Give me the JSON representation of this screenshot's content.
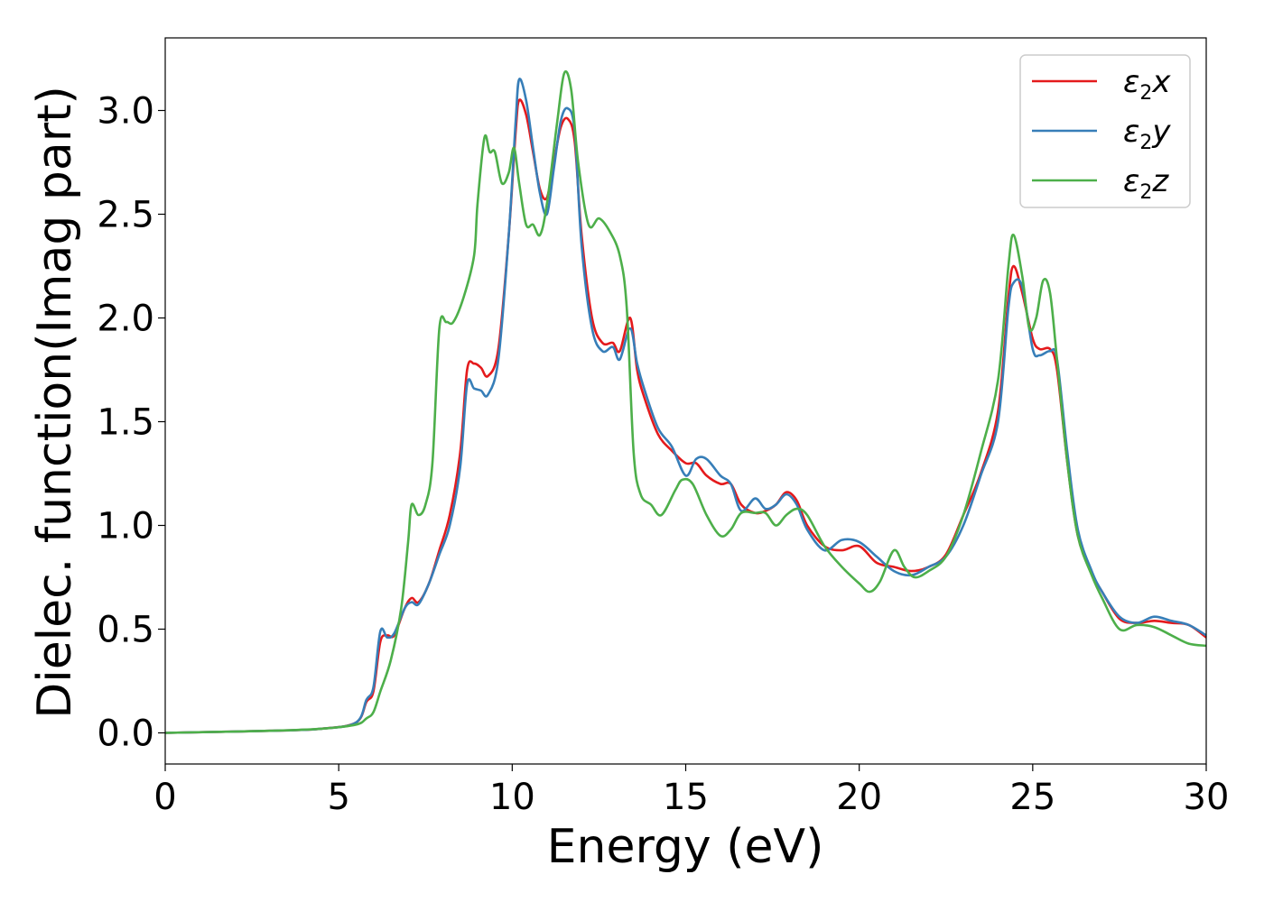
{
  "chart_data": {
    "type": "line",
    "xlabel": "Energy (eV)",
    "ylabel": "Dielec. function(Imag part)",
    "xlim": [
      0,
      30
    ],
    "ylim": [
      -0.15,
      3.35
    ],
    "xticks": [
      0,
      5,
      10,
      15,
      20,
      25,
      30
    ],
    "xtick_labels": [
      "0",
      "5",
      "10",
      "15",
      "20",
      "25",
      "30"
    ],
    "yticks": [
      0.0,
      0.5,
      1.0,
      1.5,
      2.0,
      2.5,
      3.0
    ],
    "ytick_labels": [
      "0.0",
      "0.5",
      "1.0",
      "1.5",
      "2.0",
      "2.5",
      "3.0"
    ],
    "grid": false,
    "legend_position": "top-right",
    "series": [
      {
        "name": "ε2x",
        "legend_main": "ε",
        "legend_sub": "2",
        "legend_var": "x",
        "color": "#e41a1c",
        "points": [
          [
            0,
            0.0
          ],
          [
            3,
            0.01
          ],
          [
            4.5,
            0.02
          ],
          [
            5.5,
            0.05
          ],
          [
            5.8,
            0.15
          ],
          [
            6.0,
            0.2
          ],
          [
            6.2,
            0.44
          ],
          [
            6.4,
            0.47
          ],
          [
            6.6,
            0.47
          ],
          [
            6.9,
            0.6
          ],
          [
            7.1,
            0.65
          ],
          [
            7.3,
            0.63
          ],
          [
            7.6,
            0.72
          ],
          [
            7.9,
            0.88
          ],
          [
            8.2,
            1.05
          ],
          [
            8.5,
            1.35
          ],
          [
            8.7,
            1.75
          ],
          [
            8.9,
            1.78
          ],
          [
            9.1,
            1.76
          ],
          [
            9.3,
            1.72
          ],
          [
            9.6,
            1.85
          ],
          [
            9.9,
            2.4
          ],
          [
            10.1,
            2.9
          ],
          [
            10.2,
            3.05
          ],
          [
            10.4,
            2.98
          ],
          [
            10.6,
            2.8
          ],
          [
            10.8,
            2.62
          ],
          [
            11.0,
            2.58
          ],
          [
            11.2,
            2.75
          ],
          [
            11.4,
            2.92
          ],
          [
            11.6,
            2.96
          ],
          [
            11.8,
            2.85
          ],
          [
            12.0,
            2.4
          ],
          [
            12.3,
            2.0
          ],
          [
            12.6,
            1.88
          ],
          [
            12.9,
            1.88
          ],
          [
            13.1,
            1.84
          ],
          [
            13.4,
            2.0
          ],
          [
            13.6,
            1.75
          ],
          [
            13.8,
            1.62
          ],
          [
            14.2,
            1.44
          ],
          [
            14.6,
            1.36
          ],
          [
            15.0,
            1.3
          ],
          [
            15.3,
            1.3
          ],
          [
            15.6,
            1.24
          ],
          [
            16.0,
            1.2
          ],
          [
            16.3,
            1.2
          ],
          [
            16.6,
            1.1
          ],
          [
            17.0,
            1.06
          ],
          [
            17.3,
            1.07
          ],
          [
            17.6,
            1.1
          ],
          [
            17.9,
            1.16
          ],
          [
            18.2,
            1.12
          ],
          [
            18.5,
            1.0
          ],
          [
            19.0,
            0.9
          ],
          [
            19.5,
            0.88
          ],
          [
            20.0,
            0.9
          ],
          [
            20.5,
            0.82
          ],
          [
            21.0,
            0.8
          ],
          [
            21.5,
            0.78
          ],
          [
            22.0,
            0.8
          ],
          [
            22.5,
            0.86
          ],
          [
            23.0,
            1.05
          ],
          [
            23.5,
            1.25
          ],
          [
            24.0,
            1.55
          ],
          [
            24.3,
            2.1
          ],
          [
            24.45,
            2.25
          ],
          [
            24.7,
            2.12
          ],
          [
            25.0,
            1.9
          ],
          [
            25.2,
            1.85
          ],
          [
            25.5,
            1.85
          ],
          [
            25.7,
            1.75
          ],
          [
            26.0,
            1.3
          ],
          [
            26.3,
            0.95
          ],
          [
            26.7,
            0.77
          ],
          [
            27.0,
            0.68
          ],
          [
            27.5,
            0.55
          ],
          [
            28.0,
            0.53
          ],
          [
            28.5,
            0.54
          ],
          [
            29.0,
            0.53
          ],
          [
            29.5,
            0.52
          ],
          [
            30.0,
            0.46
          ]
        ]
      },
      {
        "name": "ε2y",
        "legend_main": "ε",
        "legend_sub": "2",
        "legend_var": "y",
        "color": "#377eb8",
        "points": [
          [
            0,
            0.0
          ],
          [
            3,
            0.01
          ],
          [
            4.5,
            0.02
          ],
          [
            5.5,
            0.05
          ],
          [
            5.8,
            0.16
          ],
          [
            6.0,
            0.22
          ],
          [
            6.2,
            0.49
          ],
          [
            6.4,
            0.46
          ],
          [
            6.6,
            0.48
          ],
          [
            6.9,
            0.6
          ],
          [
            7.1,
            0.63
          ],
          [
            7.3,
            0.62
          ],
          [
            7.6,
            0.72
          ],
          [
            7.9,
            0.86
          ],
          [
            8.2,
            1.0
          ],
          [
            8.5,
            1.28
          ],
          [
            8.7,
            1.68
          ],
          [
            8.9,
            1.66
          ],
          [
            9.1,
            1.65
          ],
          [
            9.3,
            1.63
          ],
          [
            9.6,
            1.8
          ],
          [
            9.9,
            2.4
          ],
          [
            10.1,
            2.95
          ],
          [
            10.2,
            3.15
          ],
          [
            10.4,
            3.05
          ],
          [
            10.6,
            2.82
          ],
          [
            10.8,
            2.6
          ],
          [
            11.0,
            2.5
          ],
          [
            11.2,
            2.72
          ],
          [
            11.4,
            2.95
          ],
          [
            11.6,
            3.01
          ],
          [
            11.8,
            2.9
          ],
          [
            12.0,
            2.35
          ],
          [
            12.3,
            1.95
          ],
          [
            12.6,
            1.84
          ],
          [
            12.9,
            1.86
          ],
          [
            13.1,
            1.8
          ],
          [
            13.4,
            1.95
          ],
          [
            13.6,
            1.78
          ],
          [
            13.8,
            1.66
          ],
          [
            14.2,
            1.47
          ],
          [
            14.6,
            1.38
          ],
          [
            15.0,
            1.24
          ],
          [
            15.3,
            1.32
          ],
          [
            15.6,
            1.32
          ],
          [
            16.0,
            1.24
          ],
          [
            16.3,
            1.2
          ],
          [
            16.6,
            1.07
          ],
          [
            17.0,
            1.13
          ],
          [
            17.3,
            1.08
          ],
          [
            17.6,
            1.1
          ],
          [
            17.9,
            1.15
          ],
          [
            18.2,
            1.1
          ],
          [
            18.5,
            0.98
          ],
          [
            19.0,
            0.88
          ],
          [
            19.5,
            0.93
          ],
          [
            20.0,
            0.92
          ],
          [
            20.5,
            0.85
          ],
          [
            21.0,
            0.78
          ],
          [
            21.5,
            0.76
          ],
          [
            22.0,
            0.8
          ],
          [
            22.5,
            0.85
          ],
          [
            23.0,
            1.0
          ],
          [
            23.5,
            1.24
          ],
          [
            24.0,
            1.5
          ],
          [
            24.3,
            2.05
          ],
          [
            24.45,
            2.17
          ],
          [
            24.7,
            2.15
          ],
          [
            25.0,
            1.85
          ],
          [
            25.2,
            1.82
          ],
          [
            25.5,
            1.84
          ],
          [
            25.7,
            1.8
          ],
          [
            26.0,
            1.35
          ],
          [
            26.3,
            0.98
          ],
          [
            26.7,
            0.78
          ],
          [
            27.0,
            0.68
          ],
          [
            27.5,
            0.56
          ],
          [
            28.0,
            0.53
          ],
          [
            28.5,
            0.56
          ],
          [
            29.0,
            0.54
          ],
          [
            29.5,
            0.52
          ],
          [
            30.0,
            0.47
          ]
        ]
      },
      {
        "name": "ε2z",
        "legend_main": "ε",
        "legend_sub": "2",
        "legend_var": "z",
        "color": "#4daf4a",
        "points": [
          [
            0,
            0.0
          ],
          [
            3,
            0.01
          ],
          [
            4.5,
            0.02
          ],
          [
            5.5,
            0.04
          ],
          [
            5.8,
            0.07
          ],
          [
            6.0,
            0.1
          ],
          [
            6.2,
            0.2
          ],
          [
            6.5,
            0.35
          ],
          [
            6.8,
            0.6
          ],
          [
            7.0,
            0.92
          ],
          [
            7.1,
            1.1
          ],
          [
            7.3,
            1.05
          ],
          [
            7.5,
            1.1
          ],
          [
            7.7,
            1.3
          ],
          [
            7.9,
            1.95
          ],
          [
            8.1,
            1.98
          ],
          [
            8.3,
            1.98
          ],
          [
            8.6,
            2.1
          ],
          [
            8.9,
            2.3
          ],
          [
            9.0,
            2.55
          ],
          [
            9.2,
            2.87
          ],
          [
            9.35,
            2.8
          ],
          [
            9.5,
            2.8
          ],
          [
            9.7,
            2.65
          ],
          [
            9.9,
            2.7
          ],
          [
            10.05,
            2.82
          ],
          [
            10.2,
            2.65
          ],
          [
            10.4,
            2.45
          ],
          [
            10.6,
            2.45
          ],
          [
            10.8,
            2.4
          ],
          [
            11.0,
            2.55
          ],
          [
            11.3,
            2.95
          ],
          [
            11.5,
            3.18
          ],
          [
            11.7,
            3.1
          ],
          [
            11.9,
            2.75
          ],
          [
            12.2,
            2.45
          ],
          [
            12.5,
            2.48
          ],
          [
            12.8,
            2.42
          ],
          [
            13.1,
            2.3
          ],
          [
            13.3,
            2.05
          ],
          [
            13.5,
            1.35
          ],
          [
            13.7,
            1.15
          ],
          [
            14.0,
            1.1
          ],
          [
            14.3,
            1.05
          ],
          [
            14.7,
            1.17
          ],
          [
            14.9,
            1.22
          ],
          [
            15.2,
            1.2
          ],
          [
            15.6,
            1.05
          ],
          [
            16.0,
            0.95
          ],
          [
            16.3,
            0.98
          ],
          [
            16.6,
            1.06
          ],
          [
            17.0,
            1.06
          ],
          [
            17.3,
            1.06
          ],
          [
            17.6,
            1.0
          ],
          [
            17.9,
            1.05
          ],
          [
            18.2,
            1.08
          ],
          [
            18.5,
            1.05
          ],
          [
            19.0,
            0.9
          ],
          [
            19.5,
            0.8
          ],
          [
            20.0,
            0.72
          ],
          [
            20.3,
            0.68
          ],
          [
            20.6,
            0.73
          ],
          [
            21.0,
            0.88
          ],
          [
            21.3,
            0.8
          ],
          [
            21.6,
            0.75
          ],
          [
            22.0,
            0.78
          ],
          [
            22.5,
            0.85
          ],
          [
            23.0,
            1.05
          ],
          [
            23.5,
            1.35
          ],
          [
            24.0,
            1.7
          ],
          [
            24.3,
            2.25
          ],
          [
            24.45,
            2.4
          ],
          [
            24.7,
            2.2
          ],
          [
            24.9,
            1.95
          ],
          [
            25.1,
            2.0
          ],
          [
            25.3,
            2.18
          ],
          [
            25.5,
            2.12
          ],
          [
            25.7,
            1.8
          ],
          [
            26.0,
            1.3
          ],
          [
            26.3,
            0.95
          ],
          [
            26.7,
            0.76
          ],
          [
            27.0,
            0.65
          ],
          [
            27.5,
            0.5
          ],
          [
            28.0,
            0.52
          ],
          [
            28.5,
            0.51
          ],
          [
            29.0,
            0.47
          ],
          [
            29.5,
            0.43
          ],
          [
            30.0,
            0.42
          ]
        ]
      }
    ]
  }
}
